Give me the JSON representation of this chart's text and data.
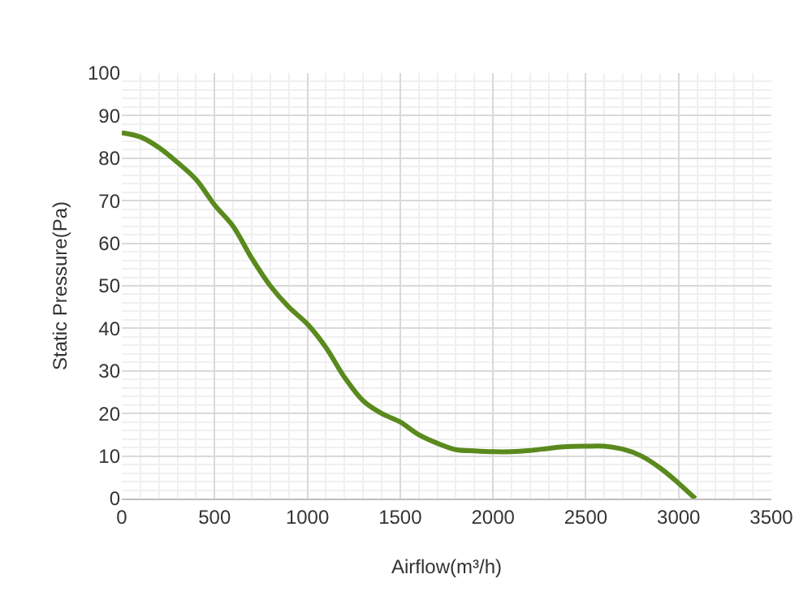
{
  "chart_data": {
    "type": "line",
    "xlabel": "Airflow(m³/h)",
    "ylabel": "Static Pressure(Pa)",
    "x": [
      0,
      100,
      200,
      300,
      400,
      500,
      600,
      700,
      800,
      900,
      1000,
      1100,
      1200,
      1300,
      1400,
      1500,
      1600,
      1700,
      1800,
      1900,
      2000,
      2100,
      2200,
      2300,
      2400,
      2500,
      2600,
      2700,
      2800,
      2900,
      3000,
      3090
    ],
    "series": [
      {
        "color": "#5a8a1e",
        "values": [
          86,
          85,
          82.5,
          79,
          75,
          69,
          64,
          56.5,
          50,
          45,
          41,
          35.5,
          28.5,
          23,
          20,
          18,
          15,
          13,
          11.5,
          11.2,
          11,
          11,
          11.3,
          11.8,
          12.2,
          12.3,
          12.3,
          11.6,
          10,
          7.2,
          3.6,
          0
        ]
      }
    ],
    "xlim": [
      0,
      3500
    ],
    "xticks": [
      0,
      500,
      1000,
      1500,
      2000,
      2500,
      3000,
      3500
    ],
    "ylim": [
      0,
      100
    ],
    "yticks": [
      0,
      10,
      20,
      30,
      40,
      50,
      60,
      70,
      80,
      90,
      100
    ],
    "grid": true,
    "marker": "none",
    "line_style": "solid"
  }
}
